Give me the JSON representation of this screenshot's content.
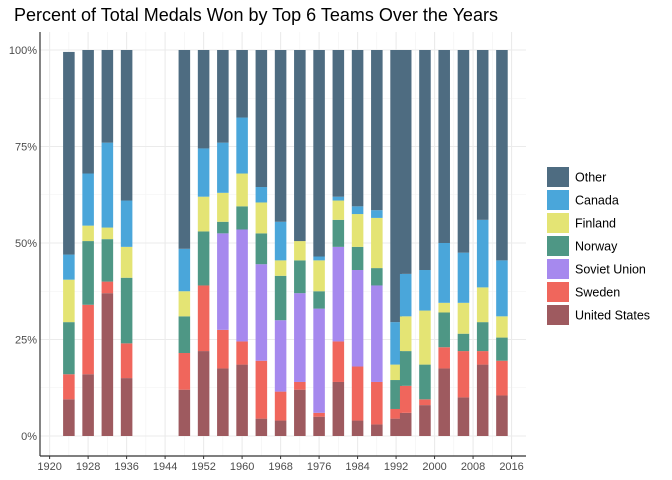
{
  "chart_data": {
    "type": "bar",
    "stacked": true,
    "percent": true,
    "title": "Percent of Total Medals Won by Top 6 Teams Over the Years",
    "xlabel": "",
    "ylabel": "",
    "xlim": [
      1918,
      2019
    ],
    "ylim": [
      0,
      100
    ],
    "x_ticks": [
      1920,
      1928,
      1936,
      1944,
      1952,
      1960,
      1968,
      1976,
      1984,
      1992,
      2000,
      2008,
      2016
    ],
    "y_ticks": [
      0,
      25,
      50,
      75,
      100
    ],
    "y_tick_labels": [
      "0%",
      "25%",
      "50%",
      "75%",
      "100%"
    ],
    "grid": true,
    "legend_position": "right",
    "x": [
      1924,
      1928,
      1932,
      1936,
      1948,
      1952,
      1956,
      1960,
      1964,
      1968,
      1972,
      1976,
      1980,
      1984,
      1988,
      1992,
      1994,
      1998,
      2002,
      2006,
      2010,
      2014
    ],
    "series": [
      {
        "name": "United States",
        "color": "#9e5a5f",
        "values": [
          9.5,
          16,
          37,
          15,
          12,
          22,
          17.5,
          18.5,
          4.5,
          4,
          12,
          5,
          14,
          4,
          3,
          4.5,
          6,
          8,
          17.5,
          10,
          18.5,
          10.5
        ]
      },
      {
        "name": "Sweden",
        "color": "#f0665c",
        "values": [
          6.5,
          18,
          3,
          9,
          9.5,
          17,
          10,
          6,
          15,
          7.5,
          2,
          1,
          10.5,
          14,
          11,
          2.5,
          7,
          1.5,
          5.5,
          12,
          3.5,
          9
        ]
      },
      {
        "name": "Soviet Union",
        "color": "#a689ee",
        "values": [
          0,
          0,
          0,
          0,
          0,
          0,
          25,
          29,
          25,
          18.5,
          23,
          27,
          24.5,
          25,
          25,
          0,
          0,
          0,
          0,
          0,
          0,
          0
        ]
      },
      {
        "name": "Norway",
        "color": "#4e9785",
        "values": [
          13.5,
          16.5,
          11,
          17,
          9.5,
          14,
          3,
          6,
          8,
          11.5,
          8.5,
          4.5,
          7,
          6,
          4.5,
          7.5,
          9,
          9,
          9,
          4.5,
          7.5,
          6
        ]
      },
      {
        "name": "Finland",
        "color": "#e4e474",
        "values": [
          11,
          4,
          3,
          8,
          6.5,
          9,
          7.5,
          8.5,
          8,
          4,
          5,
          8,
          5,
          8.5,
          13,
          4,
          9,
          14,
          2.5,
          8,
          9,
          5.5
        ]
      },
      {
        "name": "Canada",
        "color": "#4aa6da",
        "values": [
          6.5,
          13.5,
          22,
          12,
          11,
          12.5,
          13,
          14.5,
          4,
          10,
          0,
          1,
          1,
          2,
          2,
          11,
          11,
          10.5,
          15.5,
          13,
          17.5,
          14.5
        ]
      },
      {
        "name": "Other",
        "color": "#4e6c81",
        "values": [
          52.5,
          32,
          24,
          39,
          51.5,
          25.5,
          24,
          17.5,
          35.5,
          44.5,
          49.5,
          53.5,
          38,
          40.5,
          41.5,
          70.5,
          58,
          57,
          50,
          52.5,
          44,
          54.5
        ]
      }
    ],
    "legend_order": [
      "Other",
      "Canada",
      "Finland",
      "Norway",
      "Soviet Union",
      "Sweden",
      "United States"
    ]
  }
}
